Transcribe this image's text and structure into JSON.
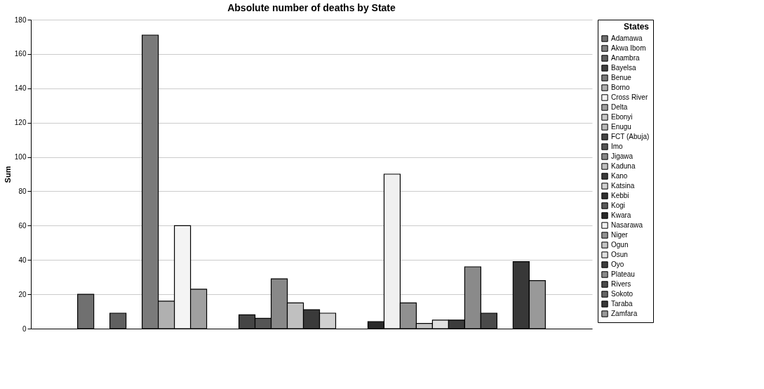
{
  "chart_data": {
    "type": "bar",
    "title": "Absolute number of deaths by State",
    "ylabel": "Sum",
    "legend_title": "States",
    "legend": "right",
    "grid": "y",
    "tick_labels": "y",
    "categories": [
      null
    ],
    "series": [
      {
        "name": "Adamawa",
        "color": "#707070",
        "values": [
          20
        ]
      },
      {
        "name": "Akwa Ibom",
        "color": "#808080",
        "values": [
          0
        ]
      },
      {
        "name": "Anambra",
        "color": "#606060",
        "values": [
          9
        ]
      },
      {
        "name": "Bayelsa",
        "color": "#404040",
        "values": [
          0
        ]
      },
      {
        "name": "Benue",
        "color": "#7a7a7a",
        "values": [
          171
        ]
      },
      {
        "name": "Borno",
        "color": "#b0b0b0",
        "values": [
          16
        ]
      },
      {
        "name": "Cross River",
        "color": "#f4f4f4",
        "values": [
          60
        ]
      },
      {
        "name": "Delta",
        "color": "#a0a0a0",
        "values": [
          23
        ]
      },
      {
        "name": "Ebonyi",
        "color": "#c8c8c8",
        "values": [
          0
        ]
      },
      {
        "name": "Enugu",
        "color": "#b8b8b8",
        "values": [
          0
        ]
      },
      {
        "name": "FCT (Abuja)",
        "color": "#454545",
        "values": [
          8
        ]
      },
      {
        "name": "Imo",
        "color": "#555555",
        "values": [
          6
        ]
      },
      {
        "name": "Jigawa",
        "color": "#888888",
        "values": [
          29
        ]
      },
      {
        "name": "Kaduna",
        "color": "#c0c0c0",
        "values": [
          15
        ]
      },
      {
        "name": "Kano",
        "color": "#3a3a3a",
        "values": [
          11
        ]
      },
      {
        "name": "Katsina",
        "color": "#d0d0d0",
        "values": [
          9
        ]
      },
      {
        "name": "Kebbi",
        "color": "#303030",
        "values": [
          0
        ]
      },
      {
        "name": "Kogi",
        "color": "#5a5a5a",
        "values": [
          0
        ]
      },
      {
        "name": "Kwara",
        "color": "#2a2a2a",
        "values": [
          4
        ]
      },
      {
        "name": "Nasarawa",
        "color": "#f0f0f0",
        "values": [
          90
        ]
      },
      {
        "name": "Niger",
        "color": "#909090",
        "values": [
          15
        ]
      },
      {
        "name": "Ogun",
        "color": "#c4c4c4",
        "values": [
          3
        ]
      },
      {
        "name": "Osun",
        "color": "#e0e0e0",
        "values": [
          5
        ]
      },
      {
        "name": "Oyo",
        "color": "#3c3c3c",
        "values": [
          5
        ]
      },
      {
        "name": "Plateau",
        "color": "#8a8a8a",
        "values": [
          36
        ]
      },
      {
        "name": "Rivers",
        "color": "#4a4a4a",
        "values": [
          9
        ]
      },
      {
        "name": "Sokoto",
        "color": "#646464",
        "values": [
          0
        ]
      },
      {
        "name": "Taraba",
        "color": "#383838",
        "values": [
          39
        ]
      },
      {
        "name": "Zamfara",
        "color": "#999999",
        "values": [
          28
        ]
      }
    ],
    "ylim": [
      0,
      180
    ],
    "yticks": [
      0,
      20,
      40,
      60,
      80,
      100,
      120,
      140,
      160,
      180
    ]
  }
}
